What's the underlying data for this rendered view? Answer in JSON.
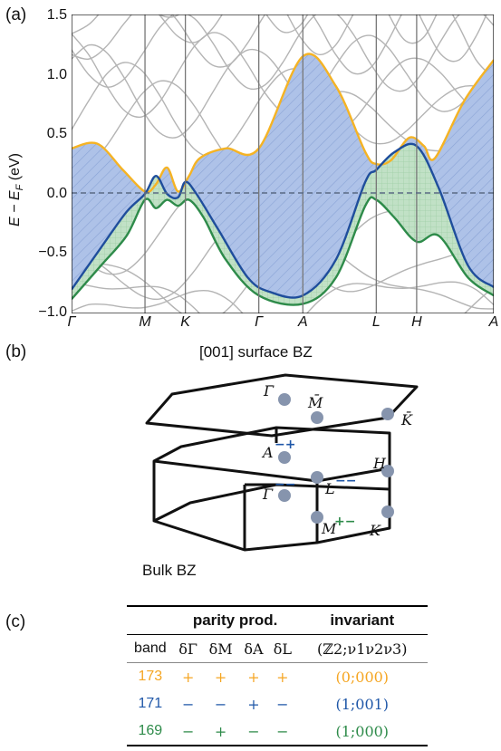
{
  "panel_a": {
    "label": "(a)",
    "ylabel": "E − E_F (eV)",
    "yticks": [
      "1.5",
      "1.0",
      "0.5",
      "0.0",
      "−0.5",
      "−1.0"
    ],
    "xticks": [
      "Γ",
      "M",
      "K",
      "Γ",
      "A",
      "L",
      "H",
      "A"
    ],
    "colors": {
      "band173": "#f5b324",
      "band171": "#1f4e9c",
      "band169": "#2e8b4a",
      "fill_blue": "#aec2e8",
      "fill_green": "#c2e3c4",
      "grey": "#b4b4b4"
    }
  },
  "chart_data": {
    "type": "line",
    "title": "",
    "xlabel": "",
    "ylabel": "E − E_F (eV)",
    "ylim": [
      -1.0,
      1.5
    ],
    "x_labels": [
      "Γ",
      "M",
      "K",
      "Γ",
      "A",
      "L",
      "H",
      "A"
    ],
    "x": [
      0,
      1,
      1.55,
      2.55,
      3.15,
      4.15,
      4.7,
      5.75
    ],
    "series": [
      {
        "name": "173",
        "color": "#f5b324",
        "points": [
          [
            0,
            0.38
          ],
          [
            0.35,
            0.42
          ],
          [
            0.7,
            0.2
          ],
          [
            1,
            0.02
          ],
          [
            1.15,
            0.08
          ],
          [
            1.3,
            0.22
          ],
          [
            1.45,
            0.02
          ],
          [
            1.6,
            0.15
          ],
          [
            1.75,
            0.3
          ],
          [
            2.1,
            0.38
          ],
          [
            2.55,
            0.38
          ],
          [
            3.15,
            1.15
          ],
          [
            3.6,
            0.9
          ],
          [
            4.0,
            0.35
          ],
          [
            4.15,
            0.25
          ],
          [
            4.35,
            0.28
          ],
          [
            4.6,
            0.47
          ],
          [
            4.8,
            0.4
          ],
          [
            4.95,
            0.3
          ],
          [
            5.35,
            0.78
          ],
          [
            5.75,
            1.12
          ]
        ]
      },
      {
        "name": "171",
        "color": "#1f4e9c",
        "points": [
          [
            0,
            -0.8
          ],
          [
            0.4,
            -0.45
          ],
          [
            0.75,
            -0.15
          ],
          [
            1,
            0.0
          ],
          [
            1.15,
            0.15
          ],
          [
            1.3,
            0.0
          ],
          [
            1.45,
            -0.03
          ],
          [
            1.55,
            0.1
          ],
          [
            1.7,
            0.0
          ],
          [
            2.0,
            -0.3
          ],
          [
            2.4,
            -0.7
          ],
          [
            2.7,
            -0.82
          ],
          [
            3.15,
            -0.85
          ],
          [
            3.6,
            -0.55
          ],
          [
            4.0,
            0.1
          ],
          [
            4.15,
            0.2
          ],
          [
            4.4,
            0.35
          ],
          [
            4.7,
            0.4
          ],
          [
            5.0,
            0.05
          ],
          [
            5.4,
            -0.6
          ],
          [
            5.75,
            -0.78
          ]
        ]
      },
      {
        "name": "169",
        "color": "#2e8b4a",
        "points": [
          [
            0,
            -0.88
          ],
          [
            0.4,
            -0.6
          ],
          [
            0.75,
            -0.35
          ],
          [
            1,
            -0.05
          ],
          [
            1.15,
            -0.12
          ],
          [
            1.3,
            -0.05
          ],
          [
            1.45,
            -0.1
          ],
          [
            1.6,
            -0.05
          ],
          [
            1.8,
            -0.2
          ],
          [
            2.1,
            -0.55
          ],
          [
            2.55,
            -0.85
          ],
          [
            3.15,
            -0.92
          ],
          [
            3.6,
            -0.7
          ],
          [
            4.0,
            -0.1
          ],
          [
            4.15,
            -0.05
          ],
          [
            4.4,
            -0.2
          ],
          [
            4.7,
            -0.4
          ],
          [
            5.0,
            -0.35
          ],
          [
            5.4,
            -0.7
          ],
          [
            5.75,
            -0.85
          ]
        ]
      }
    ],
    "grid": false,
    "fermi_line": 0.0
  },
  "panel_b": {
    "label": "(b)",
    "surface_title": "[001] surface BZ",
    "bulk_title": "Bulk BZ",
    "surface_points": [
      {
        "name": "Γ̄",
        "sup": ""
      },
      {
        "name": "M̄",
        "sup": ""
      },
      {
        "name": "K̄",
        "sup": ""
      }
    ],
    "bulk_points": [
      {
        "name": "A",
        "sup": "−+"
      },
      {
        "name": "Γ",
        "sup": "−−"
      },
      {
        "name": "L",
        "sup": "−−"
      },
      {
        "name": "M",
        "sup": "+−"
      },
      {
        "name": "H",
        "sup": ""
      },
      {
        "name": "K",
        "sup": ""
      }
    ]
  },
  "panel_c": {
    "label": "(c)",
    "header_parity": "parity prod.",
    "header_invariant": "invariant",
    "col_band": "band",
    "col_dG": "δΓ",
    "col_dM": "δM",
    "col_dA": "δA",
    "col_dL": "δL",
    "col_inv": "(ℤ2;ν1ν2ν3)",
    "rows": [
      {
        "band": "173",
        "dG": "+",
        "dM": "+",
        "dA": "+",
        "dL": "+",
        "inv": "(0;000)",
        "color": "#f5a623"
      },
      {
        "band": "171",
        "dG": "−",
        "dM": "−",
        "dA": "+",
        "dL": "−",
        "inv": "(1;001)",
        "color": "#1f57a8"
      },
      {
        "band": "169",
        "dG": "−",
        "dM": "+",
        "dA": "−",
        "dL": "−",
        "inv": "(1;000)",
        "color": "#2e8b4a"
      }
    ]
  }
}
